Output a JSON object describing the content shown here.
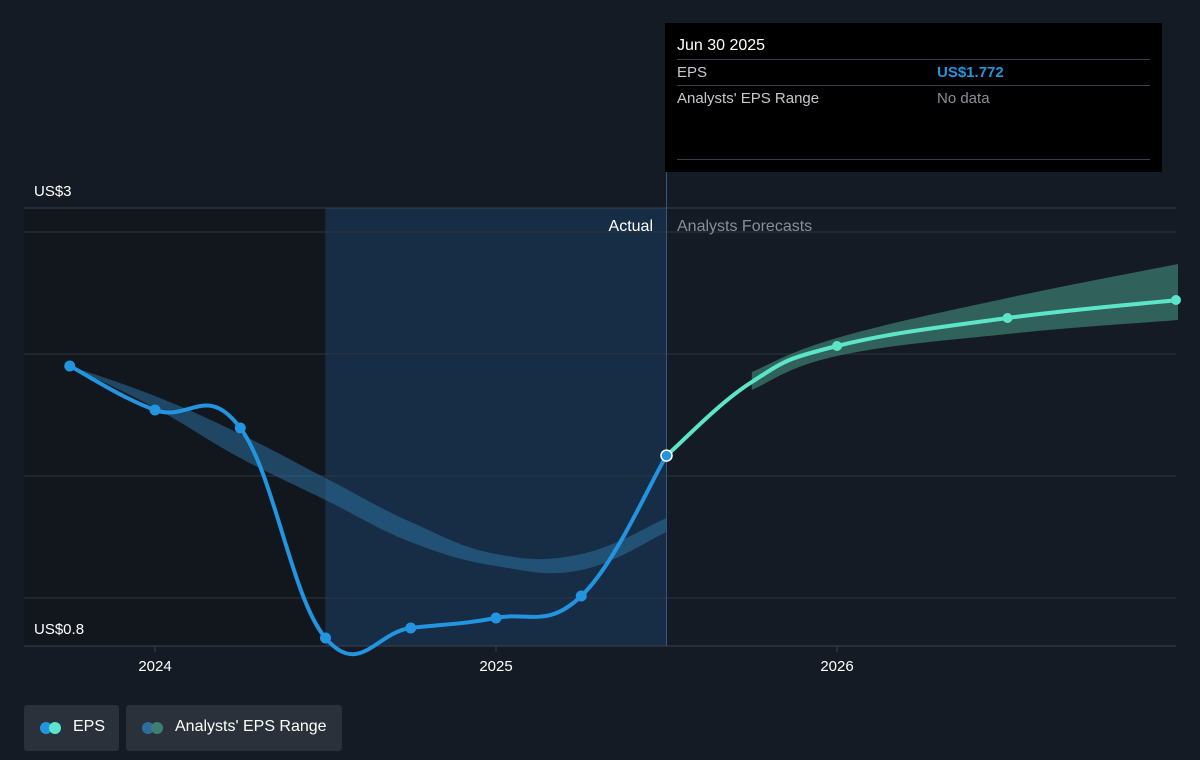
{
  "tooltip": {
    "date": "Jun 30 2025",
    "eps_label": "EPS",
    "eps_value": "US$1.772",
    "range_label": "Analysts' EPS Range",
    "range_value": "No data"
  },
  "legend": {
    "eps": "EPS",
    "range": "Analysts' EPS Range"
  },
  "colors": {
    "background": "#151b24",
    "actual_line": "#2394df",
    "forecast_line": "#5ce6c9",
    "actual_band": "#2a6f9b",
    "forecast_band": "#3d7f74",
    "highlight": "#173049",
    "grid": "#2e3640",
    "value_blue": "#2394df",
    "muted_text": "#8a8f96"
  },
  "chart_data": {
    "type": "line",
    "title": "",
    "xlabel": "",
    "ylabel": "",
    "y_top_label": "US$3",
    "y_bottom_label": "US$0.8",
    "ylim": [
      0.8,
      3
    ],
    "x_ticks": [
      "2024",
      "2025",
      "2026"
    ],
    "x_tick_values": [
      2024.0,
      2025.0,
      2026.0
    ],
    "xlim": [
      2023.6,
      2027.0
    ],
    "region_labels": {
      "actual": "Actual",
      "forecast": "Analysts Forecasts"
    },
    "divider_x": 2025.5,
    "highlight_range": [
      2024.5,
      2025.5
    ],
    "grid": true,
    "legend_position": "bottom-left",
    "series": [
      {
        "name": "EPS",
        "kind": "actual",
        "x": [
          2023.75,
          2024.0,
          2024.25,
          2024.5,
          2024.75,
          2025.0,
          2025.25,
          2025.5
        ],
        "y": [
          2.22,
          2.0,
          1.91,
          0.86,
          0.91,
          0.96,
          1.07,
          1.772
        ]
      },
      {
        "name": "EPS",
        "kind": "forecast",
        "x": [
          2025.5,
          2025.75,
          2026.0,
          2026.5,
          2027.0
        ],
        "y": [
          1.772,
          2.14,
          2.32,
          2.46,
          2.55
        ]
      }
    ],
    "ranges": [
      {
        "name": "Analysts' EPS Range",
        "kind": "actual",
        "x": [
          2023.75,
          2024.0,
          2024.25,
          2024.5,
          2024.75,
          2025.0,
          2025.25,
          2025.5
        ],
        "upper": [
          2.22,
          2.07,
          1.88,
          1.66,
          1.44,
          1.28,
          1.28,
          1.46
        ],
        "lower": [
          2.22,
          2.01,
          1.76,
          1.55,
          1.34,
          1.22,
          1.2,
          1.39
        ]
      },
      {
        "name": "Analysts' EPS Range",
        "kind": "forecast",
        "x": [
          2025.75,
          2026.0,
          2026.5,
          2027.0
        ],
        "upper": [
          2.19,
          2.36,
          2.56,
          2.73
        ],
        "lower": [
          2.1,
          2.27,
          2.38,
          2.45
        ]
      }
    ]
  }
}
